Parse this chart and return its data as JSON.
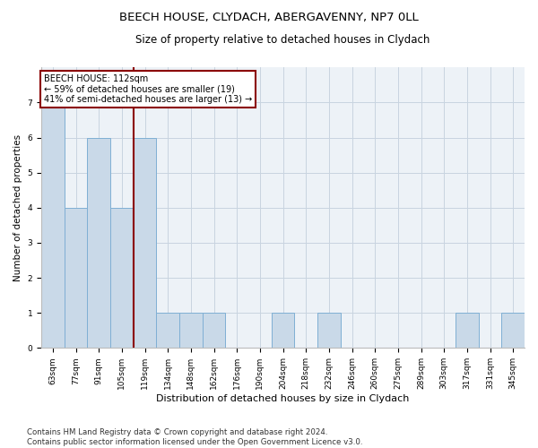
{
  "title": "BEECH HOUSE, CLYDACH, ABERGAVENNY, NP7 0LL",
  "subtitle": "Size of property relative to detached houses in Clydach",
  "xlabel": "Distribution of detached houses by size in Clydach",
  "ylabel": "Number of detached properties",
  "categories": [
    "63sqm",
    "77sqm",
    "91sqm",
    "105sqm",
    "119sqm",
    "134sqm",
    "148sqm",
    "162sqm",
    "176sqm",
    "190sqm",
    "204sqm",
    "218sqm",
    "232sqm",
    "246sqm",
    "260sqm",
    "275sqm",
    "289sqm",
    "303sqm",
    "317sqm",
    "331sqm",
    "345sqm"
  ],
  "values": [
    7,
    4,
    6,
    4,
    6,
    1,
    1,
    1,
    0,
    0,
    1,
    0,
    1,
    0,
    0,
    0,
    0,
    0,
    1,
    0,
    1
  ],
  "bar_color": "#c9d9e8",
  "bar_edgecolor": "#7fafd4",
  "vline_x_index": 3.5,
  "vline_color": "#8b0000",
  "annotation_line1": "BEECH HOUSE: 112sqm",
  "annotation_line2": "← 59% of detached houses are smaller (19)",
  "annotation_line3": "41% of semi-detached houses are larger (13) →",
  "annotation_box_color": "#8b0000",
  "ylim": [
    0,
    8
  ],
  "yticks": [
    0,
    1,
    2,
    3,
    4,
    5,
    6,
    7
  ],
  "footnote_line1": "Contains HM Land Registry data © Crown copyright and database right 2024.",
  "footnote_line2": "Contains public sector information licensed under the Open Government Licence v3.0.",
  "bg_color": "#edf2f7",
  "grid_color": "#c8d4e0",
  "title_fontsize": 9.5,
  "subtitle_fontsize": 8.5,
  "xlabel_fontsize": 8,
  "ylabel_fontsize": 7.5,
  "tick_fontsize": 6.5,
  "footnote_fontsize": 6.2,
  "annotation_fontsize": 7
}
